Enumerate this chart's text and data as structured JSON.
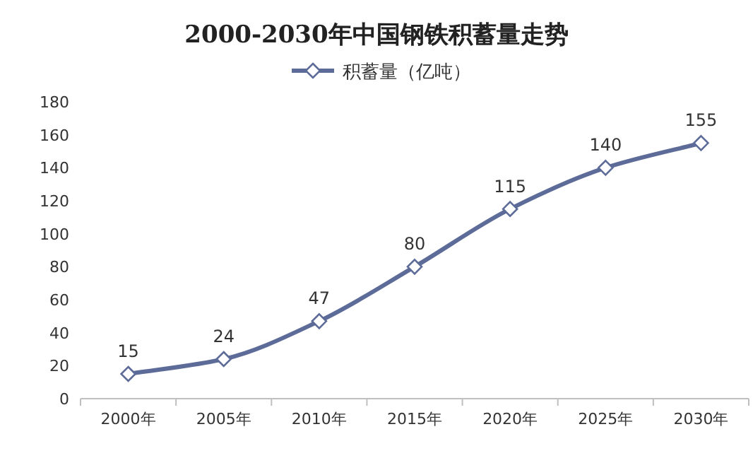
{
  "chart_data": {
    "type": "line",
    "title": "2000-2030年中国钢铁积蓄量走势",
    "categories": [
      "2000年",
      "2005年",
      "2010年",
      "2015年",
      "2020年",
      "2025年",
      "2030年"
    ],
    "series": [
      {
        "name": "积蓄量（亿吨）",
        "color": "#5d6b98",
        "values": [
          15,
          24,
          47,
          80,
          115,
          140,
          155
        ]
      }
    ],
    "ylim": [
      0,
      180
    ],
    "yticks": [
      0,
      20,
      40,
      60,
      80,
      100,
      120,
      140,
      160,
      180
    ],
    "grid": false,
    "legend": "top",
    "marker": "diamond",
    "line_style": "solid",
    "data_labels": true
  }
}
